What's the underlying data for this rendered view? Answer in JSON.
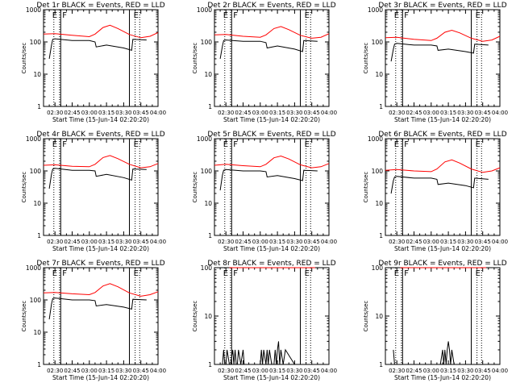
{
  "colors": {
    "events": "#000000",
    "lld": "#ff0000",
    "axis": "#000000"
  },
  "chart_data": [
    {
      "type": "line",
      "title": "Det 1r BLACK = Events, RED = LLD",
      "ylabel": "Counts/sec",
      "xlabel": "Start Time (15-Jun-14 02:20:20)",
      "xticks": [
        "02:30",
        "02:45",
        "03:00",
        "03:15",
        "03:30",
        "03:45",
        "04:00"
      ],
      "yticks": [
        "1",
        "10",
        "100",
        "1000"
      ],
      "ylim": [
        1,
        1000
      ],
      "yscale": "log",
      "xlim": [
        "02:20",
        "04:00"
      ],
      "markers": {
        "dotted": [
          "02:29",
          "02:34",
          "03:40",
          "03:44"
        ],
        "solid": [
          "02:35",
          "03:35"
        ]
      },
      "marker_labels": [
        "E",
        "F",
        "E"
      ],
      "series": [
        {
          "name": "RED = LLD",
          "x": [
            "02:20",
            "02:30",
            "02:45",
            "03:00",
            "03:05",
            "03:12",
            "03:18",
            "03:25",
            "03:35",
            "03:45",
            "03:53",
            "04:00"
          ],
          "values": [
            175,
            180,
            160,
            145,
            175,
            280,
            330,
            260,
            170,
            135,
            150,
            195
          ]
        },
        {
          "name": "BLACK = Events",
          "x": [
            "02:25",
            "02:27",
            "02:28",
            "02:30",
            "02:45",
            "03:00",
            "03:05",
            "03:06",
            "03:15",
            "03:30",
            "03:37",
            "03:38",
            "03:50"
          ],
          "values": [
            30,
            80,
            120,
            125,
            110,
            110,
            100,
            70,
            80,
            65,
            55,
            120,
            115
          ]
        }
      ]
    },
    {
      "type": "line",
      "title": "Det 2r BLACK = Events, RED = LLD",
      "ylabel": "Counts/sec",
      "xlabel": "Start Time (15-Jun-14 02:20:20)",
      "xticks": [
        "02:30",
        "02:45",
        "03:00",
        "03:15",
        "03:30",
        "03:45",
        "04:00"
      ],
      "yticks": [
        "1",
        "10",
        "100",
        "1000"
      ],
      "ylim": [
        1,
        1000
      ],
      "yscale": "log",
      "xlim": [
        "02:20",
        "04:00"
      ],
      "markers": {
        "dotted": [
          "02:29",
          "02:34",
          "03:40",
          "03:44"
        ],
        "solid": [
          "02:35",
          "03:35"
        ]
      },
      "marker_labels": [
        "E",
        "F",
        "E"
      ],
      "series": [
        {
          "name": "RED = LLD",
          "x": [
            "02:20",
            "02:30",
            "02:45",
            "03:00",
            "03:05",
            "03:12",
            "03:18",
            "03:25",
            "03:35",
            "03:45",
            "03:53",
            "04:00"
          ],
          "values": [
            165,
            170,
            150,
            140,
            165,
            260,
            300,
            240,
            160,
            130,
            140,
            180
          ]
        },
        {
          "name": "BLACK = Events",
          "x": [
            "02:25",
            "02:27",
            "02:28",
            "02:30",
            "02:45",
            "03:00",
            "03:05",
            "03:06",
            "03:15",
            "03:30",
            "03:37",
            "03:38",
            "03:50"
          ],
          "values": [
            30,
            75,
            110,
            115,
            105,
            105,
            95,
            65,
            75,
            60,
            50,
            110,
            105
          ]
        }
      ]
    },
    {
      "type": "line",
      "title": "Det 3r BLACK = Events, RED = LLD",
      "ylabel": "Counts/sec",
      "xlabel": "Start Time (15-Jun-14 02:20:20)",
      "xticks": [
        "02:30",
        "02:45",
        "03:00",
        "03:15",
        "03:30",
        "03:45",
        "04:00"
      ],
      "yticks": [
        "1",
        "10",
        "100",
        "1000"
      ],
      "ylim": [
        1,
        1000
      ],
      "yscale": "log",
      "xlim": [
        "02:20",
        "04:00"
      ],
      "markers": {
        "dotted": [
          "02:29",
          "02:34",
          "03:40",
          "03:44"
        ],
        "solid": [
          "02:35",
          "03:35"
        ]
      },
      "marker_labels": [
        "E",
        "F",
        "E"
      ],
      "series": [
        {
          "name": "RED = LLD",
          "x": [
            "02:20",
            "02:30",
            "02:45",
            "03:00",
            "03:05",
            "03:12",
            "03:18",
            "03:25",
            "03:35",
            "03:45",
            "03:53",
            "04:00"
          ],
          "values": [
            135,
            140,
            120,
            110,
            130,
            200,
            230,
            190,
            130,
            105,
            115,
            150
          ]
        },
        {
          "name": "BLACK = Events",
          "x": [
            "02:25",
            "02:27",
            "02:28",
            "02:30",
            "02:45",
            "03:00",
            "03:05",
            "03:06",
            "03:15",
            "03:30",
            "03:37",
            "03:38",
            "03:50"
          ],
          "values": [
            25,
            60,
            85,
            90,
            80,
            80,
            75,
            55,
            60,
            50,
            45,
            85,
            80
          ]
        }
      ]
    },
    {
      "type": "line",
      "title": "Det 4r BLACK = Events, RED = LLD",
      "ylabel": "Counts/sec",
      "xlabel": "Start Time (15-Jun-14 02:20:20)",
      "xticks": [
        "02:30",
        "02:45",
        "03:00",
        "03:15",
        "03:30",
        "03:45",
        "04:00"
      ],
      "yticks": [
        "1",
        "10",
        "100",
        "1000"
      ],
      "ylim": [
        1,
        1000
      ],
      "yscale": "log",
      "xlim": [
        "02:20",
        "04:00"
      ],
      "markers": {
        "dotted": [
          "02:29",
          "02:34",
          "03:40",
          "03:44"
        ],
        "solid": [
          "02:35",
          "03:35"
        ]
      },
      "marker_labels": [
        "E",
        "F",
        "E"
      ],
      "series": [
        {
          "name": "RED = LLD",
          "x": [
            "02:20",
            "02:30",
            "02:45",
            "03:00",
            "03:05",
            "03:12",
            "03:18",
            "03:25",
            "03:35",
            "03:45",
            "03:53",
            "04:00"
          ],
          "values": [
            150,
            155,
            140,
            135,
            160,
            260,
            300,
            240,
            160,
            125,
            135,
            170
          ]
        },
        {
          "name": "BLACK = Events",
          "x": [
            "02:25",
            "02:27",
            "02:28",
            "02:30",
            "02:45",
            "03:00",
            "03:05",
            "03:06",
            "03:15",
            "03:30",
            "03:37",
            "03:38",
            "03:50"
          ],
          "values": [
            28,
            80,
            115,
            120,
            105,
            105,
            100,
            68,
            78,
            62,
            52,
            115,
            110
          ]
        }
      ]
    },
    {
      "type": "line",
      "title": "Det 5r BLACK = Events, RED = LLD",
      "ylabel": "Counts/sec",
      "xlabel": "Start Time (15-Jun-14 02:20:20)",
      "xticks": [
        "02:30",
        "02:45",
        "03:00",
        "03:15",
        "03:30",
        "03:45",
        "04:00"
      ],
      "yticks": [
        "1",
        "10",
        "100",
        "1000"
      ],
      "ylim": [
        1,
        1000
      ],
      "yscale": "log",
      "xlim": [
        "02:20",
        "04:00"
      ],
      "markers": {
        "dotted": [
          "02:29",
          "02:34",
          "03:40",
          "03:44"
        ],
        "solid": [
          "02:35",
          "03:35"
        ]
      },
      "marker_labels": [
        "E",
        "F",
        "E"
      ],
      "series": [
        {
          "name": "RED = LLD",
          "x": [
            "02:20",
            "02:30",
            "02:45",
            "03:00",
            "03:05",
            "03:12",
            "03:18",
            "03:25",
            "03:35",
            "03:45",
            "03:53",
            "04:00"
          ],
          "values": [
            150,
            160,
            145,
            135,
            160,
            255,
            290,
            235,
            155,
            125,
            135,
            170
          ]
        },
        {
          "name": "BLACK = Events",
          "x": [
            "02:25",
            "02:27",
            "02:28",
            "02:30",
            "02:45",
            "03:00",
            "03:05",
            "03:06",
            "03:15",
            "03:30",
            "03:37",
            "03:38",
            "03:50"
          ],
          "values": [
            25,
            75,
            105,
            110,
            100,
            100,
            95,
            65,
            72,
            58,
            50,
            105,
            100
          ]
        }
      ]
    },
    {
      "type": "line",
      "title": "Det 6r BLACK = Events, RED = LLD",
      "ylabel": "Counts/sec",
      "xlabel": "Start Time (15-Jun-14 02:20:20)",
      "xticks": [
        "02:30",
        "02:45",
        "03:00",
        "03:15",
        "03:30",
        "03:45",
        "04:00"
      ],
      "yticks": [
        "1",
        "10",
        "100",
        "1000"
      ],
      "ylim": [
        1,
        1000
      ],
      "yscale": "log",
      "xlim": [
        "02:20",
        "04:00"
      ],
      "markers": {
        "dotted": [
          "02:29",
          "02:34",
          "03:40",
          "03:44"
        ],
        "solid": [
          "02:35",
          "03:35"
        ]
      },
      "marker_labels": [
        "E",
        "F",
        "E"
      ],
      "series": [
        {
          "name": "RED = LLD",
          "x": [
            "02:20",
            "02:30",
            "02:45",
            "03:00",
            "03:05",
            "03:12",
            "03:18",
            "03:25",
            "03:35",
            "03:45",
            "03:53",
            "04:00"
          ],
          "values": [
            105,
            110,
            100,
            95,
            115,
            190,
            220,
            175,
            115,
            90,
            100,
            125
          ]
        },
        {
          "name": "BLACK = Events",
          "x": [
            "02:25",
            "02:27",
            "02:28",
            "02:30",
            "02:45",
            "03:00",
            "03:05",
            "03:06",
            "03:15",
            "03:30",
            "03:37",
            "03:38",
            "03:50"
          ],
          "values": [
            20,
            50,
            65,
            68,
            60,
            60,
            55,
            38,
            42,
            35,
            30,
            60,
            55
          ]
        }
      ]
    },
    {
      "type": "line",
      "title": "Det 7r BLACK = Events, RED = LLD",
      "ylabel": "Counts/sec",
      "xlabel": "Start Time (15-Jun-14 02:20:20)",
      "xticks": [
        "02:30",
        "02:45",
        "03:00",
        "03:15",
        "03:30",
        "03:45",
        "04:00"
      ],
      "yticks": [
        "1",
        "10",
        "100",
        "1000"
      ],
      "ylim": [
        1,
        1000
      ],
      "yscale": "log",
      "xlim": [
        "02:20",
        "04:00"
      ],
      "markers": {
        "dotted": [
          "02:29",
          "02:34",
          "03:40",
          "03:44"
        ],
        "solid": [
          "02:35",
          "03:35"
        ]
      },
      "marker_labels": [
        "E",
        "F",
        "E"
      ],
      "series": [
        {
          "name": "RED = LLD",
          "x": [
            "02:20",
            "02:30",
            "02:45",
            "03:00",
            "03:05",
            "03:12",
            "03:18",
            "03:25",
            "03:35",
            "03:45",
            "03:53",
            "04:00"
          ],
          "values": [
            165,
            170,
            155,
            145,
            170,
            270,
            320,
            255,
            165,
            130,
            145,
            180
          ]
        },
        {
          "name": "BLACK = Events",
          "x": [
            "02:25",
            "02:27",
            "02:28",
            "02:30",
            "02:45",
            "03:00",
            "03:05",
            "03:06",
            "03:15",
            "03:30",
            "03:37",
            "03:38",
            "03:50"
          ],
          "values": [
            25,
            75,
            110,
            115,
            100,
            100,
            95,
            65,
            72,
            60,
            52,
            105,
            100
          ]
        }
      ]
    },
    {
      "type": "line",
      "title": "Det 8r BLACK = Events, RED = LLD",
      "ylabel": "Counts/sec",
      "xlabel": "Start Time (15-Jun-14 02:20:20)",
      "xticks": [
        "02:30",
        "02:45",
        "03:00",
        "03:15",
        "03:30",
        "03:45",
        "04:00"
      ],
      "yticks": [
        "1",
        "10",
        "100"
      ],
      "ylim": [
        1,
        100
      ],
      "yscale": "log",
      "xlim": [
        "02:20",
        "04:00"
      ],
      "markers": {
        "dotted": [
          "02:29",
          "02:34",
          "03:40",
          "03:44"
        ],
        "solid": [
          "02:35",
          "03:35"
        ]
      },
      "marker_labels": [
        "E",
        "F",
        "E"
      ],
      "series": [
        {
          "name": "RED = LLD",
          "x": [
            "02:33",
            "02:40",
            "02:50",
            "03:00",
            "03:10",
            "03:20",
            "03:30",
            "03:38",
            "03:48"
          ],
          "values": [
            100,
            100,
            100,
            100,
            100,
            100,
            100,
            100,
            100
          ]
        },
        {
          "name": "BLACK = Events",
          "x": [
            "02:27",
            "02:28",
            "02:29",
            "02:30",
            "02:31",
            "02:33",
            "02:34",
            "02:36",
            "02:37",
            "02:38",
            "02:39",
            "02:40",
            "02:41",
            "02:43",
            "02:45",
            "02:46",
            "02:48",
            "02:50",
            "02:55",
            "03:00",
            "03:01",
            "03:02",
            "03:03",
            "03:05",
            "03:06",
            "03:07",
            "03:08",
            "03:10",
            "03:12",
            "03:13",
            "03:14",
            "03:15",
            "03:16",
            "03:17",
            "03:18",
            "03:20",
            "03:22",
            "03:30"
          ],
          "values": [
            1,
            2,
            1,
            1,
            2,
            1,
            1,
            2,
            1,
            2,
            1,
            1,
            2,
            1,
            2,
            1,
            1,
            1,
            1,
            1,
            2,
            1,
            2,
            1,
            2,
            1,
            2,
            1,
            1,
            2,
            1,
            2,
            3,
            1,
            2,
            1,
            2,
            1
          ]
        }
      ]
    },
    {
      "type": "line",
      "title": "Det 9r BLACK = Events, RED = LLD",
      "ylabel": "Counts/sec",
      "xlabel": "Start Time (15-Jun-14 02:20:20)",
      "xticks": [
        "02:30",
        "02:45",
        "03:00",
        "03:15",
        "03:30",
        "03:45",
        "04:00"
      ],
      "yticks": [
        "1",
        "10",
        "100"
      ],
      "ylim": [
        1,
        100
      ],
      "yscale": "log",
      "xlim": [
        "02:20",
        "04:00"
      ],
      "markers": {
        "dotted": [
          "02:29",
          "02:34",
          "03:40",
          "03:44"
        ],
        "solid": [
          "02:35",
          "03:35"
        ]
      },
      "marker_labels": [
        "E",
        "F",
        "E"
      ],
      "series": [
        {
          "name": "RED = LLD",
          "x": [
            "02:33",
            "02:40",
            "02:50",
            "03:00",
            "03:10",
            "03:20",
            "03:30",
            "03:38",
            "03:48"
          ],
          "values": [
            100,
            100,
            100,
            100,
            100,
            100,
            100,
            100,
            100
          ]
        },
        {
          "name": "BLACK = Events",
          "x": [
            "02:27",
            "02:28",
            "03:07",
            "03:08",
            "03:10",
            "03:11",
            "03:12",
            "03:13",
            "03:14",
            "03:15",
            "03:16",
            "03:17",
            "03:18",
            "03:20"
          ],
          "values": [
            2,
            1,
            1,
            1,
            2,
            1,
            2,
            1,
            2,
            3,
            2,
            1,
            2,
            1
          ]
        }
      ]
    }
  ]
}
